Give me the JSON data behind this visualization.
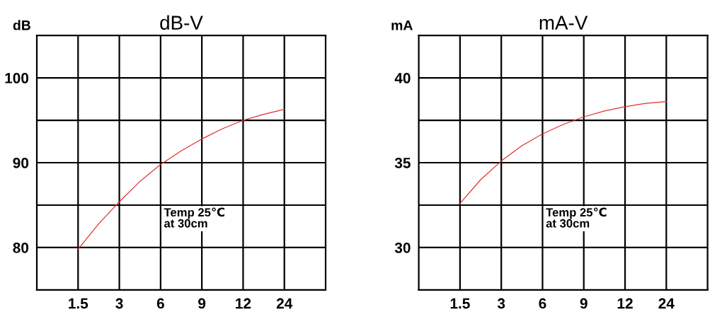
{
  "chart_data": [
    {
      "type": "line",
      "title": "dB-V",
      "ylabel": "dB",
      "grid": true,
      "ylim": [
        75,
        105
      ],
      "categories": [
        "1.5",
        null,
        "3",
        null,
        "6",
        null,
        "9",
        null,
        "12",
        null,
        "24"
      ],
      "yticks": [
        {
          "value": 80,
          "label": "80"
        },
        {
          "value": 85,
          "label": null
        },
        {
          "value": 90,
          "label": "90"
        },
        {
          "value": 95,
          "label": null
        },
        {
          "value": 100,
          "label": "100"
        }
      ],
      "series": [
        {
          "color": "#e03030",
          "values": [
            79.8,
            82.8,
            85.4,
            87.8,
            89.8,
            91.4,
            92.8,
            94.0,
            95.0,
            95.7,
            96.3
          ]
        }
      ],
      "annotations": [
        "Temp 25℃\nat 30cm"
      ]
    },
    {
      "type": "line",
      "title": "mA-V",
      "ylabel": "mA",
      "grid": true,
      "ylim": [
        27.5,
        42.5
      ],
      "categories": [
        "1.5",
        null,
        "3",
        null,
        "6",
        null,
        "9",
        null,
        "12",
        null,
        "24"
      ],
      "yticks": [
        {
          "value": 30,
          "label": "30"
        },
        {
          "value": 32.5,
          "label": null
        },
        {
          "value": 35,
          "label": "35"
        },
        {
          "value": 37.5,
          "label": null
        },
        {
          "value": 40,
          "label": "40"
        }
      ],
      "series": [
        {
          "color": "#e03030",
          "values": [
            32.6,
            34.0,
            35.1,
            36.0,
            36.7,
            37.25,
            37.7,
            38.05,
            38.3,
            38.5,
            38.6
          ]
        }
      ],
      "annotations": [
        "Temp 25℃\nat 30cm"
      ]
    }
  ]
}
